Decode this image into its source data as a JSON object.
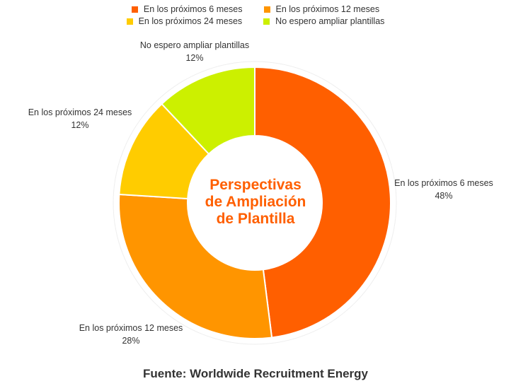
{
  "chart_data": {
    "type": "pie",
    "donut": true,
    "title": "Perspectivas de Ampliación de Plantilla",
    "title_lines": [
      "Perspectivas",
      "de Ampliación",
      "de Plantilla"
    ],
    "legend_position": "top",
    "categories": [
      "En los próximos 6 meses",
      "En los próximos 12 meses",
      "En los próximos 24 meses",
      "No espero ampliar plantillas"
    ],
    "values": [
      48,
      28,
      12,
      12
    ],
    "value_labels": [
      "48%",
      "28%",
      "12%",
      "12%"
    ],
    "colors": [
      "#ff5f00",
      "#ff9500",
      "#ffcc00",
      "#ccf000"
    ],
    "title_color": "#ff5f00"
  },
  "source": "Fuente: Worldwide Recruitment Energy"
}
